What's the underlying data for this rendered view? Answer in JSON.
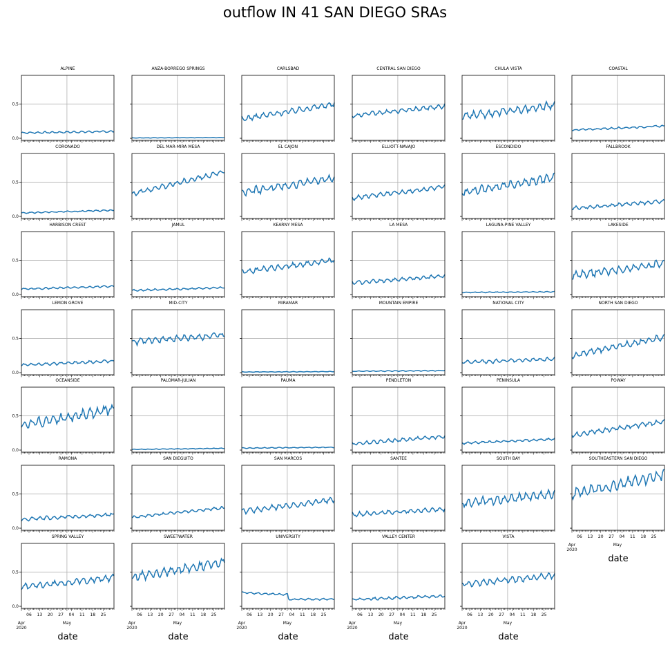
{
  "figure": {
    "title": "outflow IN 41 SAN DIEGO SRAs"
  },
  "chart_data": {
    "type": "line",
    "layout": {
      "rows": 7,
      "cols": 6
    },
    "ylim": [
      -0.03,
      0.92
    ],
    "yticks": [
      0.0,
      0.5
    ],
    "ytick_labels": [
      "0.0",
      "0.5"
    ],
    "xlabel": "date",
    "x_range": [
      "2020-04-01",
      "2020-06-01"
    ],
    "xtick_major_labels": [
      "Apr\n2020",
      "May"
    ],
    "xtick_minor_labels": [
      "06",
      "13",
      "20",
      "27",
      "04",
      "11",
      "18",
      "25"
    ],
    "grid": true,
    "line_color": "#1f77b4",
    "panels": [
      {
        "name": "ALPINE",
        "start": 0.08,
        "end": 0.1,
        "amp": 0.02
      },
      {
        "name": "ANZA-BORREGO SPRINGS",
        "start": 0.005,
        "end": 0.01,
        "amp": 0.004
      },
      {
        "name": "CARLSBAD",
        "start": 0.28,
        "end": 0.5,
        "amp": 0.06
      },
      {
        "name": "CENTRAL SAN DIEGO",
        "start": 0.33,
        "end": 0.47,
        "amp": 0.05
      },
      {
        "name": "CHULA VISTA",
        "start": 0.32,
        "end": 0.48,
        "amp": 0.09
      },
      {
        "name": "COASTAL",
        "start": 0.12,
        "end": 0.18,
        "amp": 0.02
      },
      {
        "name": "CORONADO",
        "start": 0.05,
        "end": 0.09,
        "amp": 0.015
      },
      {
        "name": "DEL MAR-MIRA MESA",
        "start": 0.33,
        "end": 0.65,
        "amp": 0.06
      },
      {
        "name": "EL CAJON",
        "start": 0.35,
        "end": 0.56,
        "amp": 0.09
      },
      {
        "name": "ELLIOTT-NAVAJO",
        "start": 0.27,
        "end": 0.43,
        "amp": 0.05
      },
      {
        "name": "ESCONDIDO",
        "start": 0.35,
        "end": 0.57,
        "amp": 0.09
      },
      {
        "name": "FALLBROOK",
        "start": 0.12,
        "end": 0.22,
        "amp": 0.04
      },
      {
        "name": "HARBISON CREST",
        "start": 0.08,
        "end": 0.12,
        "amp": 0.02
      },
      {
        "name": "JAMUL",
        "start": 0.06,
        "end": 0.1,
        "amp": 0.02
      },
      {
        "name": "KEARNY MESA",
        "start": 0.33,
        "end": 0.5,
        "amp": 0.06
      },
      {
        "name": "LA MESA",
        "start": 0.17,
        "end": 0.27,
        "amp": 0.04
      },
      {
        "name": "LAGUNA-PINE VALLEY",
        "start": 0.03,
        "end": 0.04,
        "amp": 0.01
      },
      {
        "name": "LAKESIDE",
        "start": 0.28,
        "end": 0.45,
        "amp": 0.09
      },
      {
        "name": "LEMON GROVE",
        "start": 0.11,
        "end": 0.17,
        "amp": 0.03
      },
      {
        "name": "MID-CITY",
        "start": 0.45,
        "end": 0.55,
        "amp": 0.07
      },
      {
        "name": "MIRAMAR",
        "start": 0.01,
        "end": 0.015,
        "amp": 0.006
      },
      {
        "name": "MOUNTAIN EMPIRE",
        "start": 0.02,
        "end": 0.03,
        "amp": 0.01
      },
      {
        "name": "NATIONAL CITY",
        "start": 0.15,
        "end": 0.2,
        "amp": 0.04
      },
      {
        "name": "NORTH SAN DIEGO",
        "start": 0.25,
        "end": 0.52,
        "amp": 0.07
      },
      {
        "name": "OCEANSIDE",
        "start": 0.36,
        "end": 0.6,
        "amp": 0.11
      },
      {
        "name": "PALOMAR-JULIAN",
        "start": 0.01,
        "end": 0.025,
        "amp": 0.008
      },
      {
        "name": "PAUMA",
        "start": 0.03,
        "end": 0.04,
        "amp": 0.01
      },
      {
        "name": "PENDLETON",
        "start": 0.09,
        "end": 0.2,
        "amp": 0.04
      },
      {
        "name": "PENINSULA",
        "start": 0.1,
        "end": 0.16,
        "amp": 0.025
      },
      {
        "name": "POWAY",
        "start": 0.22,
        "end": 0.42,
        "amp": 0.05
      },
      {
        "name": "RAMONA",
        "start": 0.13,
        "end": 0.2,
        "amp": 0.04
      },
      {
        "name": "SAN DIEGUITO",
        "start": 0.16,
        "end": 0.3,
        "amp": 0.03
      },
      {
        "name": "SAN MARCOS",
        "start": 0.24,
        "end": 0.42,
        "amp": 0.06
      },
      {
        "name": "SANTEE",
        "start": 0.2,
        "end": 0.28,
        "amp": 0.05
      },
      {
        "name": "SOUTH BAY",
        "start": 0.36,
        "end": 0.5,
        "amp": 0.1
      },
      {
        "name": "SOUTHEASTERN SAN DIEGO",
        "start": 0.5,
        "end": 0.78,
        "amp": 0.12
      },
      {
        "name": "SPRING VALLEY",
        "start": 0.28,
        "end": 0.42,
        "amp": 0.07
      },
      {
        "name": "SWEETWATER",
        "start": 0.42,
        "end": 0.65,
        "amp": 0.1
      },
      {
        "name": "UNIVERSITY",
        "start": 0.2,
        "end": 0.14,
        "amp": 0.02,
        "drop": 0.07
      },
      {
        "name": "VALLEY CENTER",
        "start": 0.1,
        "end": 0.15,
        "amp": 0.03
      },
      {
        "name": "VISTA",
        "start": 0.32,
        "end": 0.45,
        "amp": 0.07
      }
    ]
  }
}
